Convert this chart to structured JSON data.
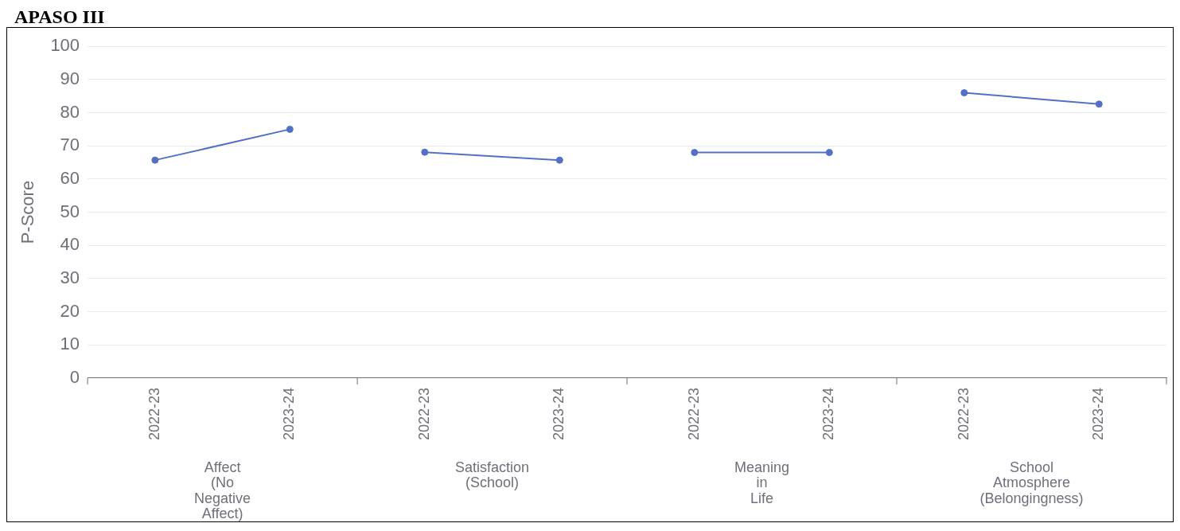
{
  "chart_data": {
    "type": "line",
    "title": "APASO III",
    "ylabel": "P-Score",
    "categories": [
      "2022-23",
      "2023-24",
      "2022-23",
      "2023-24",
      "2022-23",
      "2023-24",
      "2022-23",
      "2023-24"
    ],
    "series": [
      {
        "color": "#5470c6",
        "values": [
          65.7,
          75,
          68.1,
          65.7,
          68,
          68,
          86,
          82.6
        ]
      }
    ],
    "annotations": [
      "Affect\n(No\nNegative\nAffect)",
      "Satisfaction\n(School)",
      "Meaning\nin\nLife",
      "School\nAtmosphere\n(Belongingness)"
    ],
    "ylim": [
      0,
      100
    ],
    "yticks": [
      0,
      10,
      20,
      30,
      40,
      50,
      60,
      70,
      80,
      90,
      100
    ],
    "grid": "y",
    "marker": "circle",
    "legend": false
  }
}
